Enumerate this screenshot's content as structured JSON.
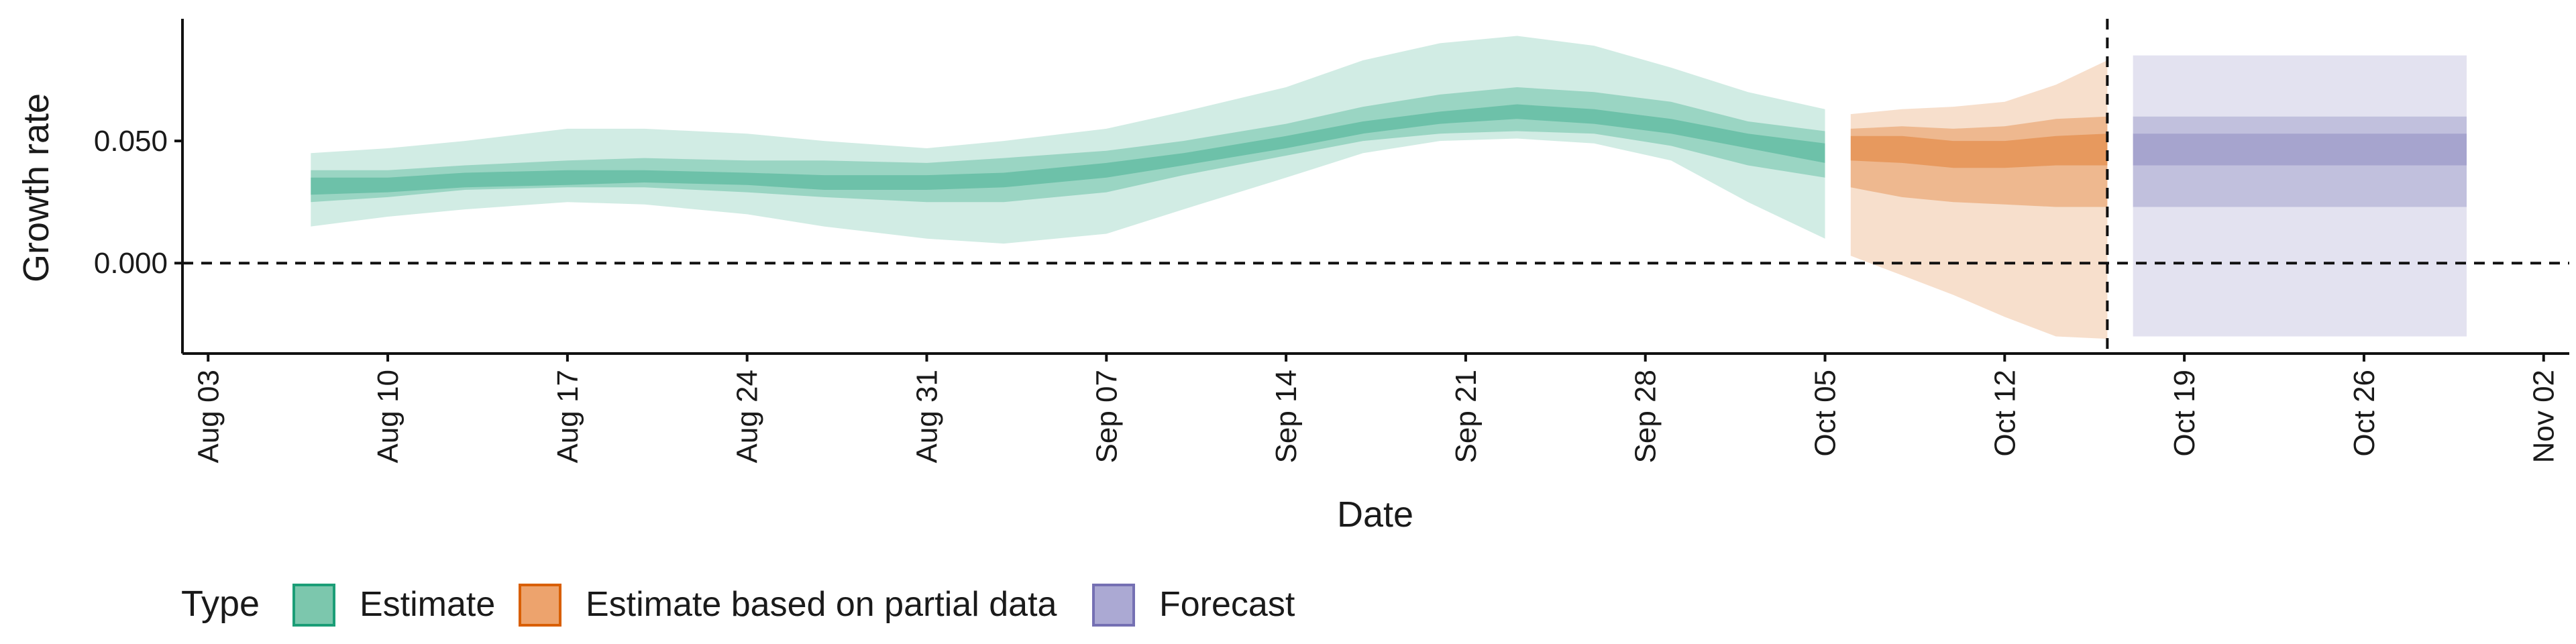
{
  "chart_data": {
    "type": "area",
    "xlabel": "Date",
    "ylabel": "Growth rate",
    "ylim": [
      -0.037,
      0.1
    ],
    "yticks": [
      {
        "value": 0.0,
        "label": "0.000"
      },
      {
        "value": 0.05,
        "label": "0.050"
      }
    ],
    "xlim": [
      "2020-08-02",
      "2020-11-03"
    ],
    "xticks": [
      {
        "date": "2020-08-03",
        "label": "Aug 03"
      },
      {
        "date": "2020-08-10",
        "label": "Aug 10"
      },
      {
        "date": "2020-08-17",
        "label": "Aug 17"
      },
      {
        "date": "2020-08-24",
        "label": "Aug 24"
      },
      {
        "date": "2020-08-31",
        "label": "Aug 31"
      },
      {
        "date": "2020-09-07",
        "label": "Sep 07"
      },
      {
        "date": "2020-09-14",
        "label": "Sep 14"
      },
      {
        "date": "2020-09-21",
        "label": "Sep 21"
      },
      {
        "date": "2020-09-28",
        "label": "Sep 28"
      },
      {
        "date": "2020-10-05",
        "label": "Oct 05"
      },
      {
        "date": "2020-10-12",
        "label": "Oct 12"
      },
      {
        "date": "2020-10-19",
        "label": "Oct 19"
      },
      {
        "date": "2020-10-26",
        "label": "Oct 26"
      },
      {
        "date": "2020-11-02",
        "label": "Nov 02"
      }
    ],
    "reference_lines": {
      "horizontal_zero": 0.0,
      "vertical_date": "2020-10-16"
    },
    "grid": false,
    "legend": {
      "title": "Type",
      "position": "bottom-left",
      "entries": [
        {
          "label": "Estimate",
          "fill": "#7cc7ad",
          "stroke": "#1b9e77"
        },
        {
          "label": "Estimate based on partial data",
          "fill": "#eda36d",
          "stroke": "#d95f02"
        },
        {
          "label": "Forecast",
          "fill": "#aba9d3",
          "stroke": "#7570b3"
        }
      ]
    },
    "series": [
      {
        "name": "Estimate",
        "color": "#1b9e77",
        "x": [
          "2020-08-07",
          "2020-08-10",
          "2020-08-13",
          "2020-08-17",
          "2020-08-20",
          "2020-08-24",
          "2020-08-27",
          "2020-08-31",
          "2020-09-03",
          "2020-09-07",
          "2020-09-10",
          "2020-09-14",
          "2020-09-17",
          "2020-09-20",
          "2020-09-23",
          "2020-09-26",
          "2020-09-29",
          "2020-10-02",
          "2020-10-05"
        ],
        "lower90": [
          0.015,
          0.019,
          0.022,
          0.025,
          0.024,
          0.02,
          0.015,
          0.01,
          0.008,
          0.012,
          0.022,
          0.035,
          0.045,
          0.05,
          0.051,
          0.049,
          0.042,
          0.025,
          0.01
        ],
        "upper90": [
          0.045,
          0.047,
          0.05,
          0.055,
          0.055,
          0.053,
          0.05,
          0.047,
          0.05,
          0.055,
          0.062,
          0.072,
          0.083,
          0.09,
          0.093,
          0.089,
          0.08,
          0.07,
          0.063
        ],
        "lower50": [
          0.025,
          0.027,
          0.03,
          0.031,
          0.031,
          0.029,
          0.027,
          0.025,
          0.025,
          0.029,
          0.036,
          0.044,
          0.05,
          0.053,
          0.054,
          0.053,
          0.048,
          0.04,
          0.035
        ],
        "upper50": [
          0.038,
          0.038,
          0.04,
          0.042,
          0.043,
          0.042,
          0.042,
          0.041,
          0.043,
          0.046,
          0.05,
          0.057,
          0.064,
          0.069,
          0.072,
          0.07,
          0.066,
          0.058,
          0.054
        ],
        "lower20": [
          0.028,
          0.029,
          0.031,
          0.032,
          0.033,
          0.032,
          0.03,
          0.03,
          0.031,
          0.035,
          0.04,
          0.047,
          0.053,
          0.057,
          0.059,
          0.057,
          0.053,
          0.047,
          0.041
        ],
        "upper20": [
          0.035,
          0.035,
          0.037,
          0.038,
          0.038,
          0.037,
          0.036,
          0.036,
          0.037,
          0.041,
          0.045,
          0.052,
          0.058,
          0.062,
          0.065,
          0.063,
          0.059,
          0.053,
          0.049
        ]
      },
      {
        "name": "Estimate based on partial data",
        "color": "#d95f02",
        "x": [
          "2020-10-06",
          "2020-10-08",
          "2020-10-10",
          "2020-10-12",
          "2020-10-14",
          "2020-10-16"
        ],
        "lower90": [
          0.003,
          -0.005,
          -0.013,
          -0.022,
          -0.03,
          -0.031
        ],
        "upper90": [
          0.061,
          0.063,
          0.064,
          0.066,
          0.073,
          0.083
        ],
        "lower50": [
          0.031,
          0.027,
          0.025,
          0.024,
          0.023,
          0.023
        ],
        "upper50": [
          0.055,
          0.056,
          0.055,
          0.056,
          0.059,
          0.06
        ],
        "lower20": [
          0.042,
          0.041,
          0.039,
          0.039,
          0.04,
          0.04
        ],
        "upper20": [
          0.052,
          0.052,
          0.05,
          0.05,
          0.052,
          0.053
        ]
      },
      {
        "name": "Forecast",
        "color": "#7570b3",
        "x": [
          "2020-10-17",
          "2020-10-30"
        ],
        "lower90": [
          -0.03,
          -0.03
        ],
        "upper90": [
          0.085,
          0.085
        ],
        "lower50": [
          0.023,
          0.023
        ],
        "upper50": [
          0.06,
          0.06
        ],
        "lower20": [
          0.04,
          0.04
        ],
        "upper20": [
          0.053,
          0.053
        ]
      }
    ]
  }
}
